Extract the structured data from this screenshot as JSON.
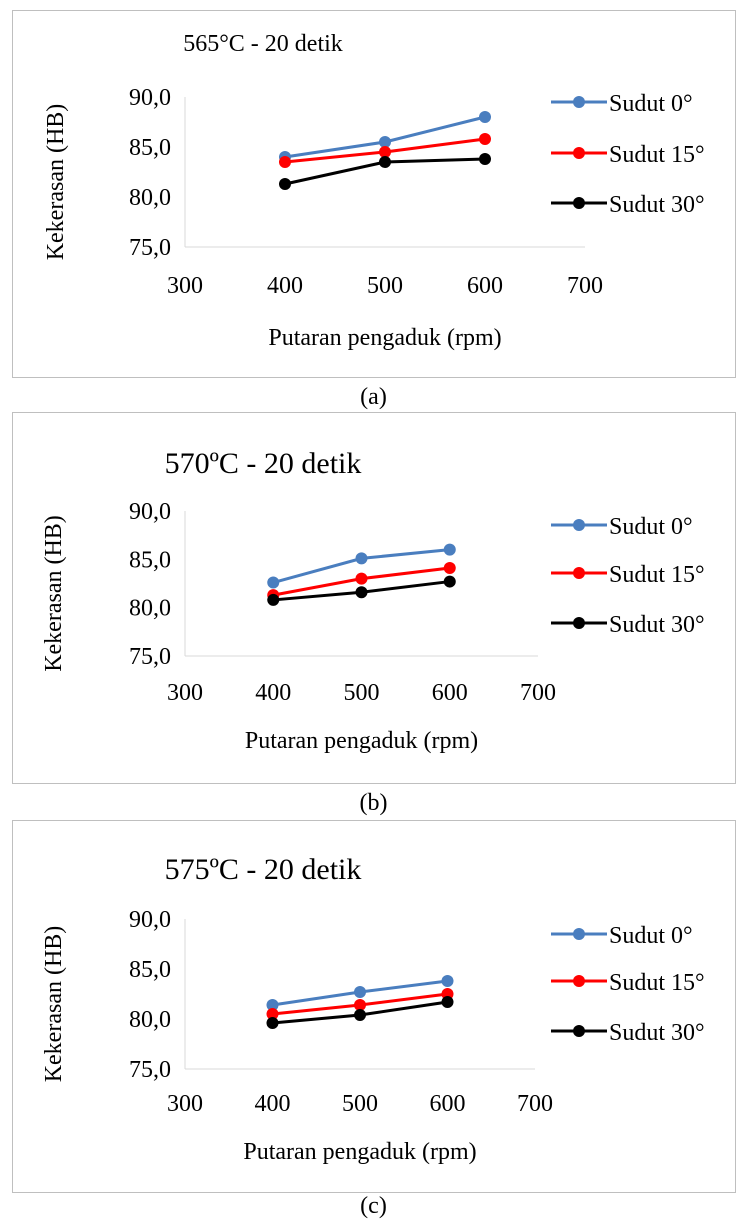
{
  "captions": [
    "(a)",
    "(b)",
    "(c)"
  ],
  "chart_data": [
    {
      "type": "line",
      "title": "565°C - 20 detik",
      "xlabel": "Putaran pengaduk (rpm)",
      "ylabel": "Kekerasan (HB)",
      "xlim": [
        300,
        700
      ],
      "ylim": [
        75,
        90
      ],
      "xticks": [
        "300",
        "400",
        "500",
        "600",
        "700"
      ],
      "yticks": [
        "75,0",
        "80,0",
        "85,0",
        "90,0"
      ],
      "grid": false,
      "legend_position": "right",
      "x": [
        400,
        500,
        600
      ],
      "series": [
        {
          "name": "Sudut 0°",
          "color": "#4a7ebf",
          "values": [
            84.0,
            85.5,
            88.0
          ]
        },
        {
          "name": "Sudut 15°",
          "color": "#ff0000",
          "values": [
            83.5,
            84.5,
            85.8
          ]
        },
        {
          "name": "Sudut 30°",
          "color": "#000000",
          "values": [
            81.3,
            83.5,
            83.8
          ]
        }
      ]
    },
    {
      "type": "line",
      "title": "570ºC - 20 detik",
      "xlabel": "Putaran pengaduk (rpm)",
      "ylabel": "Kekerasan (HB)",
      "xlim": [
        300,
        700
      ],
      "ylim": [
        75,
        90
      ],
      "xticks": [
        "300",
        "400",
        "500",
        "600",
        "700"
      ],
      "yticks": [
        "75,0",
        "80,0",
        "85,0",
        "90,0"
      ],
      "grid": false,
      "legend_position": "right",
      "x": [
        400,
        500,
        600
      ],
      "series": [
        {
          "name": "Sudut 0°",
          "color": "#4a7ebf",
          "values": [
            82.6,
            85.1,
            86.0
          ]
        },
        {
          "name": "Sudut 15°",
          "color": "#ff0000",
          "values": [
            81.3,
            83.0,
            84.1
          ]
        },
        {
          "name": "Sudut 30°",
          "color": "#000000",
          "values": [
            80.8,
            81.6,
            82.7
          ]
        }
      ]
    },
    {
      "type": "line",
      "title": "575ºC - 20 detik",
      "xlabel": "Putaran pengaduk (rpm)",
      "ylabel": "Kekerasan (HB)",
      "xlim": [
        300,
        700
      ],
      "ylim": [
        75,
        90
      ],
      "xticks": [
        "300",
        "400",
        "500",
        "600",
        "700"
      ],
      "yticks": [
        "75,0",
        "80,0",
        "85,0",
        "90,0"
      ],
      "grid": false,
      "legend_position": "right",
      "x": [
        400,
        500,
        600
      ],
      "series": [
        {
          "name": "Sudut 0°",
          "color": "#4a7ebf",
          "values": [
            81.4,
            82.7,
            83.8
          ]
        },
        {
          "name": "Sudut 15°",
          "color": "#ff0000",
          "values": [
            80.5,
            81.4,
            82.5
          ]
        },
        {
          "name": "Sudut 30°",
          "color": "#000000",
          "values": [
            79.6,
            80.4,
            81.7
          ]
        }
      ]
    }
  ]
}
